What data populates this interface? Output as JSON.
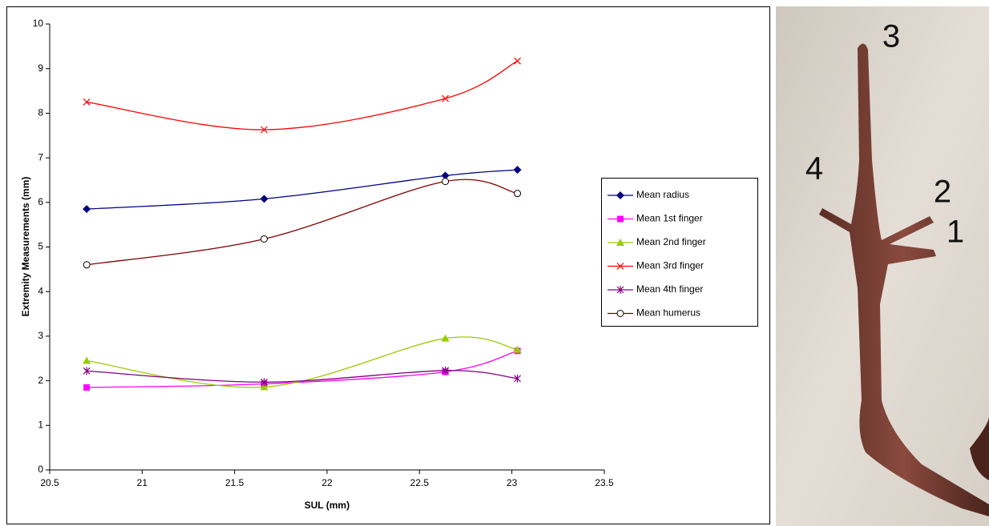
{
  "chart_data": {
    "type": "line",
    "smooth": true,
    "xlabel": "SUL (mm)",
    "ylabel": "Extremity Measurements (mm)",
    "x": [
      20.7,
      21.66,
      22.64,
      23.03
    ],
    "xlim": [
      20.5,
      23.5
    ],
    "xticks": [
      20.5,
      21,
      21.5,
      22,
      22.5,
      23,
      23.5
    ],
    "ylim": [
      0,
      10
    ],
    "yticks": [
      0,
      1,
      2,
      3,
      4,
      5,
      6,
      7,
      8,
      9,
      10
    ],
    "grid": false,
    "legend": "right",
    "series": [
      {
        "name": "Mean radius",
        "color": "#000080",
        "marker": "diamond",
        "values": [
          5.85,
          6.08,
          6.6,
          6.73
        ]
      },
      {
        "name": "Mean 1st finger",
        "color": "#ff00ff",
        "marker": "square",
        "values": [
          1.85,
          1.93,
          2.2,
          2.67
        ]
      },
      {
        "name": "Mean 2nd finger",
        "color": "#99cc00",
        "marker": "triangle",
        "values": [
          2.45,
          1.86,
          2.95,
          2.7
        ]
      },
      {
        "name": "Mean 3rd finger",
        "color": "#ff0000",
        "marker": "x",
        "values": [
          8.25,
          7.63,
          8.33,
          9.17
        ]
      },
      {
        "name": "Mean 4th finger",
        "color": "#800080",
        "marker": "asterisk",
        "values": [
          2.22,
          1.97,
          2.23,
          2.05
        ]
      },
      {
        "name": "Mean humerus",
        "color": "#800000",
        "marker": "circle",
        "values": [
          4.6,
          5.18,
          6.47,
          6.2
        ]
      }
    ]
  },
  "photo": {
    "labels": [
      "3",
      "4",
      "2",
      "1"
    ]
  }
}
